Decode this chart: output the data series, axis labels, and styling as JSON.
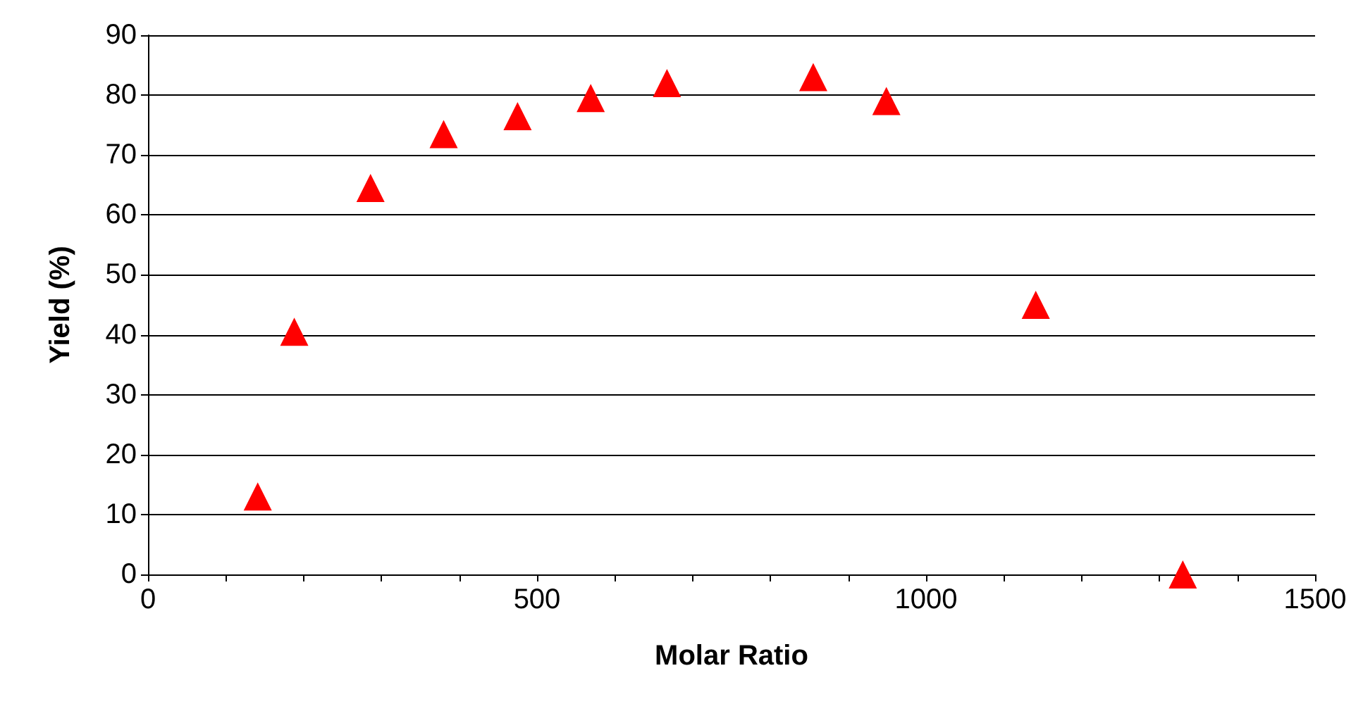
{
  "chart_data": {
    "type": "scatter",
    "xlabel": "Molar Ratio",
    "ylabel": "Yield (%)",
    "x": [
      141,
      188,
      286,
      380,
      475,
      569,
      667,
      855,
      949,
      1141,
      1330
    ],
    "series": [
      {
        "color": "#ff0000",
        "values": [
          13,
          40.5,
          64.5,
          73.5,
          76.5,
          79.5,
          82,
          83,
          79,
          45,
          0
        ]
      }
    ],
    "xlim": [
      0,
      1500
    ],
    "xticks": [
      0,
      {
        "value": 100,
        "label": null
      },
      {
        "value": 200,
        "label": null
      },
      {
        "value": 300,
        "label": null
      },
      {
        "value": 400,
        "label": null
      },
      500,
      {
        "value": 600,
        "label": null
      },
      {
        "value": 700,
        "label": null
      },
      {
        "value": 800,
        "label": null
      },
      {
        "value": 900,
        "label": null
      },
      1000,
      {
        "value": 1100,
        "label": null
      },
      {
        "value": 1200,
        "label": null
      },
      {
        "value": 1300,
        "label": null
      },
      {
        "value": 1400,
        "label": null
      },
      1500
    ],
    "ylim": [
      0,
      90
    ],
    "yticks": [
      0,
      10,
      20,
      30,
      40,
      50,
      60,
      70,
      80,
      90
    ],
    "grid": "y",
    "marker": "triangle"
  }
}
